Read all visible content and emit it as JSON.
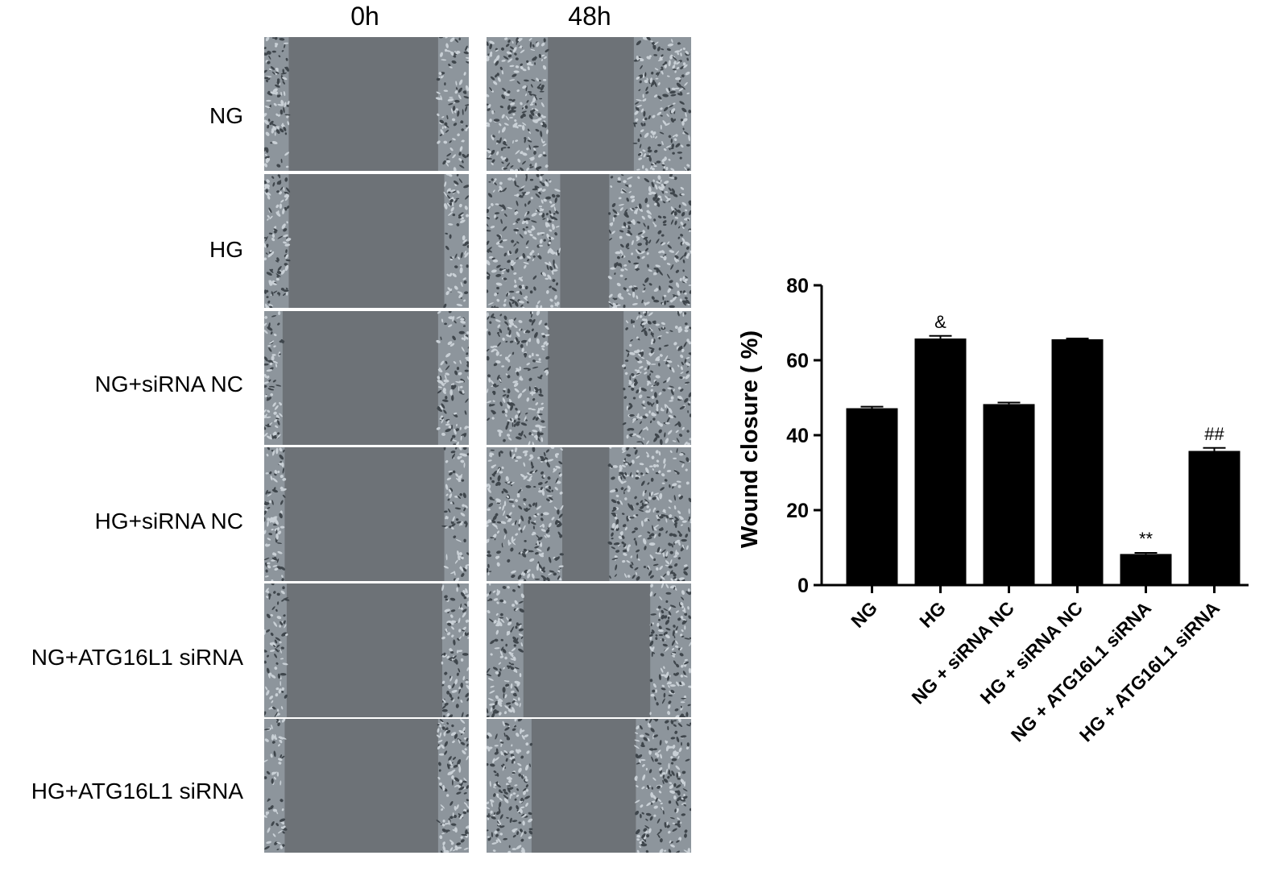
{
  "micrographs": {
    "columns": [
      "0h",
      "48h"
    ],
    "rows": [
      "NG",
      "HG",
      "NG+siRNA NC",
      "HG+siRNA NC",
      "NG+ATG16L1 siRNA",
      "HG+ATG16L1 siRNA"
    ],
    "gap_color": "#6d7277",
    "cell_color": "#c9d0d6"
  },
  "chart_data": {
    "type": "bar",
    "categories": [
      "NG",
      "HG",
      "NG + siRNA NC",
      "HG + siRNA NC",
      "NG + ATG16L1 siRNA",
      "HG + ATG16L1 siRNA"
    ],
    "values": [
      47.2,
      65.8,
      48.3,
      65.6,
      8.3,
      35.8
    ],
    "errors": [
      0.4,
      0.7,
      0.4,
      0.2,
      0.3,
      0.8
    ],
    "annotations": [
      "",
      "&",
      "",
      "",
      "**",
      "##"
    ],
    "ylabel": "Wound closure ( %)",
    "ylim": [
      0,
      80
    ],
    "yticks": [
      0,
      20,
      40,
      60,
      80
    ],
    "bar_color": "#000000"
  }
}
